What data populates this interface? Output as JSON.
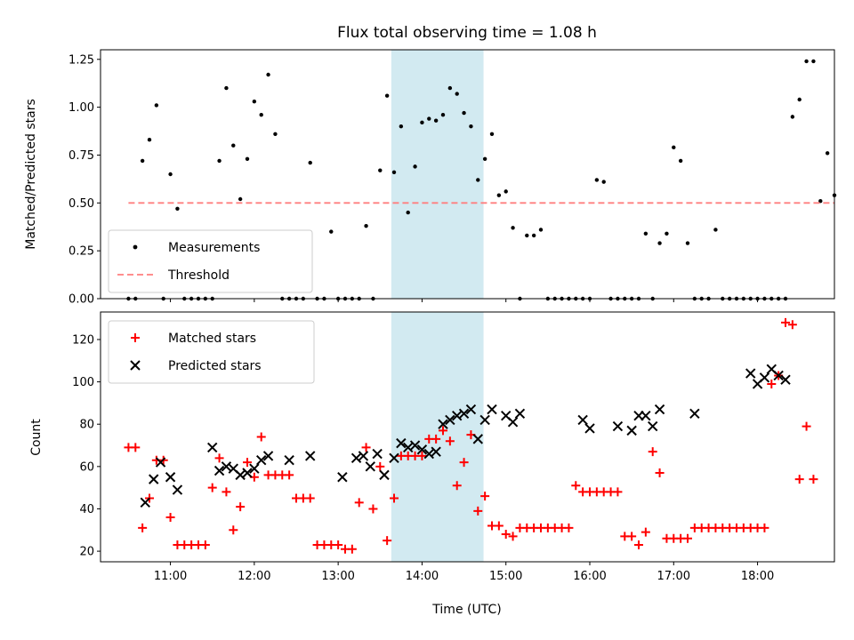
{
  "chart_data": {
    "title": "Flux total observing time = 1.08 h",
    "xlabel": "Time (UTC)",
    "x_ticks": [
      "11:00",
      "12:00",
      "13:00",
      "14:00",
      "15:00",
      "16:00",
      "17:00",
      "18:00"
    ],
    "x_range": [
      "10:10",
      "18:55"
    ],
    "highlight_band": [
      "13:38",
      "14:44"
    ],
    "highlight_color": "#add8e6",
    "top": {
      "type": "scatter",
      "ylabel": "Matched/Predicted stars",
      "ylim": [
        0,
        1.3
      ],
      "y_ticks": [
        "0.00",
        "0.25",
        "0.50",
        "0.75",
        "1.00",
        "1.25"
      ],
      "legend_position": "lower-left",
      "series": [
        {
          "name": "Measurements",
          "color": "#000000",
          "marker": "dot",
          "points": [
            [
              "10:30",
              0
            ],
            [
              "10:35",
              0
            ],
            [
              "10:40",
              0.72
            ],
            [
              "10:45",
              0.83
            ],
            [
              "10:50",
              1.01
            ],
            [
              "10:55",
              0
            ],
            [
              "11:00",
              0.65
            ],
            [
              "11:05",
              0.47
            ],
            [
              "11:10",
              0
            ],
            [
              "11:15",
              0
            ],
            [
              "11:20",
              0
            ],
            [
              "11:25",
              0
            ],
            [
              "11:30",
              0
            ],
            [
              "11:35",
              0.72
            ],
            [
              "11:40",
              1.1
            ],
            [
              "11:45",
              0.8
            ],
            [
              "11:50",
              0.52
            ],
            [
              "11:55",
              0.73
            ],
            [
              "12:00",
              1.03
            ],
            [
              "12:05",
              0.96
            ],
            [
              "12:10",
              1.17
            ],
            [
              "12:15",
              0.86
            ],
            [
              "12:20",
              0
            ],
            [
              "12:25",
              0
            ],
            [
              "12:30",
              0
            ],
            [
              "12:35",
              0
            ],
            [
              "12:40",
              0.71
            ],
            [
              "12:45",
              0
            ],
            [
              "12:50",
              0
            ],
            [
              "12:55",
              0.35
            ],
            [
              "13:00",
              0
            ],
            [
              "13:05",
              0
            ],
            [
              "13:10",
              0
            ],
            [
              "13:15",
              0
            ],
            [
              "13:20",
              0.38
            ],
            [
              "13:25",
              0
            ],
            [
              "13:30",
              0.67
            ],
            [
              "13:35",
              1.06
            ],
            [
              "13:40",
              0.66
            ],
            [
              "13:45",
              0.9
            ],
            [
              "13:50",
              0.45
            ],
            [
              "13:55",
              0.69
            ],
            [
              "14:00",
              0.92
            ],
            [
              "14:05",
              0.94
            ],
            [
              "14:10",
              0.93
            ],
            [
              "14:15",
              0.96
            ],
            [
              "14:20",
              1.1
            ],
            [
              "14:25",
              1.07
            ],
            [
              "14:30",
              0.97
            ],
            [
              "14:35",
              0.9
            ],
            [
              "14:40",
              0.62
            ],
            [
              "14:45",
              0.73
            ],
            [
              "14:50",
              0.86
            ],
            [
              "14:55",
              0.54
            ],
            [
              "15:00",
              0.56
            ],
            [
              "15:05",
              0.37
            ],
            [
              "15:10",
              0
            ],
            [
              "15:15",
              0.33
            ],
            [
              "15:20",
              0.33
            ],
            [
              "15:25",
              0.36
            ],
            [
              "15:30",
              0
            ],
            [
              "15:35",
              0
            ],
            [
              "15:40",
              0
            ],
            [
              "15:45",
              0
            ],
            [
              "15:50",
              0
            ],
            [
              "15:55",
              0
            ],
            [
              "16:00",
              0
            ],
            [
              "16:05",
              0.62
            ],
            [
              "16:10",
              0.61
            ],
            [
              "16:15",
              0
            ],
            [
              "16:20",
              0
            ],
            [
              "16:25",
              0
            ],
            [
              "16:30",
              0
            ],
            [
              "16:35",
              0
            ],
            [
              "16:40",
              0.34
            ],
            [
              "16:45",
              0
            ],
            [
              "16:50",
              0.29
            ],
            [
              "16:55",
              0.34
            ],
            [
              "17:00",
              0.79
            ],
            [
              "17:05",
              0.72
            ],
            [
              "17:10",
              0.29
            ],
            [
              "17:15",
              0
            ],
            [
              "17:20",
              0
            ],
            [
              "17:25",
              0
            ],
            [
              "17:30",
              0.36
            ],
            [
              "17:35",
              0
            ],
            [
              "17:40",
              0
            ],
            [
              "17:45",
              0
            ],
            [
              "17:50",
              0
            ],
            [
              "17:55",
              0
            ],
            [
              "18:00",
              0
            ],
            [
              "18:05",
              0
            ],
            [
              "18:10",
              0
            ],
            [
              "18:15",
              0
            ],
            [
              "18:20",
              0
            ],
            [
              "18:25",
              0.95
            ],
            [
              "18:30",
              1.04
            ],
            [
              "18:35",
              1.24
            ],
            [
              "18:40",
              1.24
            ],
            [
              "18:45",
              0.51
            ],
            [
              "18:50",
              0.76
            ],
            [
              "18:55",
              0.54
            ]
          ]
        },
        {
          "name": "Threshold",
          "color": "#ff7f7f",
          "style": "dashed",
          "points": [
            [
              "10:30",
              0.5
            ],
            [
              "18:55",
              0.5
            ]
          ]
        }
      ]
    },
    "bottom": {
      "type": "scatter",
      "ylabel": "Count",
      "ylim": [
        15,
        133
      ],
      "y_ticks": [
        "20",
        "40",
        "60",
        "80",
        "100",
        "120"
      ],
      "legend_position": "upper-left",
      "series": [
        {
          "name": "Matched stars",
          "color": "#ff0000",
          "marker": "plus",
          "points": [
            [
              "10:30",
              69
            ],
            [
              "10:35",
              69
            ],
            [
              "10:40",
              31
            ],
            [
              "10:45",
              45
            ],
            [
              "10:50",
              63
            ],
            [
              "10:55",
              63
            ],
            [
              "11:00",
              36
            ],
            [
              "11:05",
              23
            ],
            [
              "11:10",
              23
            ],
            [
              "11:15",
              23
            ],
            [
              "11:20",
              23
            ],
            [
              "11:25",
              23
            ],
            [
              "11:30",
              50
            ],
            [
              "11:35",
              64
            ],
            [
              "11:40",
              48
            ],
            [
              "11:45",
              30
            ],
            [
              "11:50",
              41
            ],
            [
              "11:55",
              62
            ],
            [
              "12:00",
              55
            ],
            [
              "12:05",
              74
            ],
            [
              "12:10",
              56
            ],
            [
              "12:15",
              56
            ],
            [
              "12:20",
              56
            ],
            [
              "12:25",
              56
            ],
            [
              "12:30",
              45
            ],
            [
              "12:35",
              45
            ],
            [
              "12:40",
              45
            ],
            [
              "12:45",
              23
            ],
            [
              "12:50",
              23
            ],
            [
              "12:55",
              23
            ],
            [
              "13:00",
              23
            ],
            [
              "13:05",
              21
            ],
            [
              "13:10",
              21
            ],
            [
              "13:15",
              43
            ],
            [
              "13:20",
              69
            ],
            [
              "13:25",
              40
            ],
            [
              "13:30",
              60
            ],
            [
              "13:35",
              25
            ],
            [
              "13:40",
              45
            ],
            [
              "13:45",
              65
            ],
            [
              "13:50",
              65
            ],
            [
              "13:55",
              65
            ],
            [
              "14:00",
              65
            ],
            [
              "14:05",
              73
            ],
            [
              "14:10",
              73
            ],
            [
              "14:15",
              77
            ],
            [
              "14:20",
              72
            ],
            [
              "14:25",
              51
            ],
            [
              "14:30",
              62
            ],
            [
              "14:35",
              75
            ],
            [
              "14:40",
              39
            ],
            [
              "14:45",
              46
            ],
            [
              "14:50",
              32
            ],
            [
              "14:55",
              32
            ],
            [
              "15:00",
              28
            ],
            [
              "15:05",
              27
            ],
            [
              "15:10",
              31
            ],
            [
              "15:15",
              31
            ],
            [
              "15:20",
              31
            ],
            [
              "15:25",
              31
            ],
            [
              "15:30",
              31
            ],
            [
              "15:35",
              31
            ],
            [
              "15:40",
              31
            ],
            [
              "15:45",
              31
            ],
            [
              "15:50",
              51
            ],
            [
              "15:55",
              48
            ],
            [
              "16:00",
              48
            ],
            [
              "16:05",
              48
            ],
            [
              "16:10",
              48
            ],
            [
              "16:15",
              48
            ],
            [
              "16:20",
              48
            ],
            [
              "16:25",
              27
            ],
            [
              "16:30",
              27
            ],
            [
              "16:35",
              23
            ],
            [
              "16:40",
              29
            ],
            [
              "16:45",
              67
            ],
            [
              "16:50",
              57
            ],
            [
              "16:55",
              26
            ],
            [
              "17:00",
              26
            ],
            [
              "17:05",
              26
            ],
            [
              "17:10",
              26
            ],
            [
              "17:15",
              31
            ],
            [
              "17:20",
              31
            ],
            [
              "17:25",
              31
            ],
            [
              "17:30",
              31
            ],
            [
              "17:35",
              31
            ],
            [
              "17:40",
              31
            ],
            [
              "17:45",
              31
            ],
            [
              "17:50",
              31
            ],
            [
              "17:55",
              31
            ],
            [
              "18:00",
              31
            ],
            [
              "18:05",
              31
            ],
            [
              "18:10",
              99
            ],
            [
              "18:15",
              103
            ],
            [
              "18:20",
              128
            ],
            [
              "18:25",
              127
            ],
            [
              "18:30",
              54
            ],
            [
              "18:35",
              79
            ],
            [
              "18:40",
              54
            ]
          ]
        },
        {
          "name": "Predicted stars",
          "color": "#000000",
          "marker": "x",
          "points": [
            [
              "10:42",
              43
            ],
            [
              "10:48",
              54
            ],
            [
              "10:53",
              62
            ],
            [
              "11:00",
              55
            ],
            [
              "11:05",
              49
            ],
            [
              "11:30",
              69
            ],
            [
              "11:35",
              58
            ],
            [
              "11:40",
              60
            ],
            [
              "11:45",
              59
            ],
            [
              "11:50",
              56
            ],
            [
              "11:55",
              57
            ],
            [
              "12:00",
              59
            ],
            [
              "12:05",
              63
            ],
            [
              "12:10",
              65
            ],
            [
              "12:25",
              63
            ],
            [
              "12:40",
              65
            ],
            [
              "13:03",
              55
            ],
            [
              "13:13",
              64
            ],
            [
              "13:18",
              65
            ],
            [
              "13:23",
              60
            ],
            [
              "13:28",
              66
            ],
            [
              "13:33",
              56
            ],
            [
              "13:40",
              64
            ],
            [
              "13:45",
              71
            ],
            [
              "13:50",
              69
            ],
            [
              "13:55",
              70
            ],
            [
              "14:00",
              68
            ],
            [
              "14:05",
              66
            ],
            [
              "14:10",
              67
            ],
            [
              "14:15",
              80
            ],
            [
              "14:20",
              82
            ],
            [
              "14:25",
              84
            ],
            [
              "14:30",
              85
            ],
            [
              "14:35",
              87
            ],
            [
              "14:40",
              73
            ],
            [
              "14:45",
              82
            ],
            [
              "14:50",
              87
            ],
            [
              "15:00",
              84
            ],
            [
              "15:05",
              81
            ],
            [
              "15:10",
              85
            ],
            [
              "15:55",
              82
            ],
            [
              "16:00",
              78
            ],
            [
              "16:20",
              79
            ],
            [
              "16:30",
              77
            ],
            [
              "16:35",
              84
            ],
            [
              "16:40",
              84
            ],
            [
              "16:45",
              79
            ],
            [
              "16:50",
              87
            ],
            [
              "17:15",
              85
            ],
            [
              "17:55",
              104
            ],
            [
              "18:00",
              99
            ],
            [
              "18:05",
              102
            ],
            [
              "18:10",
              106
            ],
            [
              "18:15",
              103
            ],
            [
              "18:20",
              101
            ]
          ]
        }
      ]
    }
  }
}
